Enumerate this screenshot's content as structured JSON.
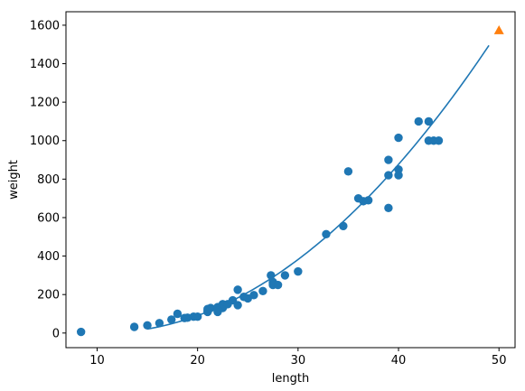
{
  "chart_data": {
    "type": "scatter",
    "title": "",
    "xlabel": "length",
    "ylabel": "weight",
    "xlim": [
      6.9,
      51.6
    ],
    "ylim": [
      -76,
      1670
    ],
    "xticks": [
      10,
      20,
      30,
      40,
      50
    ],
    "yticks": [
      0,
      200,
      400,
      600,
      800,
      1000,
      1200,
      1400,
      1600
    ],
    "grid": false,
    "legend": "none",
    "series": [
      {
        "kind": "scatter",
        "marker": "circle",
        "color": "#1f77b4",
        "points": [
          [
            8.4,
            5.9
          ],
          [
            13.7,
            32
          ],
          [
            15.0,
            40
          ],
          [
            16.2,
            51.5
          ],
          [
            17.4,
            70
          ],
          [
            18.0,
            100
          ],
          [
            18.7,
            78
          ],
          [
            19.0,
            80
          ],
          [
            19.6,
            85
          ],
          [
            20.0,
            85
          ],
          [
            21.0,
            110
          ],
          [
            21.0,
            115
          ],
          [
            21.0,
            125
          ],
          [
            21.3,
            130
          ],
          [
            22.0,
            120
          ],
          [
            22.0,
            120
          ],
          [
            22.0,
            130
          ],
          [
            22.0,
            135
          ],
          [
            22.0,
            110
          ],
          [
            22.5,
            130
          ],
          [
            22.5,
            150
          ],
          [
            22.7,
            145
          ],
          [
            23.0,
            150
          ],
          [
            23.5,
            170
          ],
          [
            24.0,
            225
          ],
          [
            24.0,
            145
          ],
          [
            24.6,
            188
          ],
          [
            25.0,
            180
          ],
          [
            25.6,
            197
          ],
          [
            26.5,
            218
          ],
          [
            27.3,
            300
          ],
          [
            27.5,
            260
          ],
          [
            27.5,
            265
          ],
          [
            27.5,
            250
          ],
          [
            28.0,
            250
          ],
          [
            28.7,
            300
          ],
          [
            30.0,
            320
          ],
          [
            32.8,
            514
          ],
          [
            34.5,
            556
          ],
          [
            35.0,
            840
          ],
          [
            36.5,
            685
          ],
          [
            36.0,
            700
          ],
          [
            37.0,
            690
          ],
          [
            39.0,
            900
          ],
          [
            39.0,
            650
          ],
          [
            39.0,
            820
          ],
          [
            40.0,
            850
          ],
          [
            40.0,
            1015
          ],
          [
            40.0,
            820
          ],
          [
            42.0,
            1100
          ],
          [
            43.0,
            1000
          ],
          [
            43.0,
            1100
          ],
          [
            43.5,
            1000
          ],
          [
            44.0,
            1000
          ]
        ]
      },
      {
        "kind": "line",
        "color": "#1f77b4",
        "function": "quadratic",
        "coefficients": [
          1.01433211,
          -21.55792498,
          116.0502107827827
        ],
        "x_range": [
          15,
          49
        ]
      },
      {
        "kind": "scatter",
        "marker": "triangle",
        "color": "#ff7f0e",
        "points": [
          [
            50,
            1574
          ]
        ]
      }
    ]
  }
}
